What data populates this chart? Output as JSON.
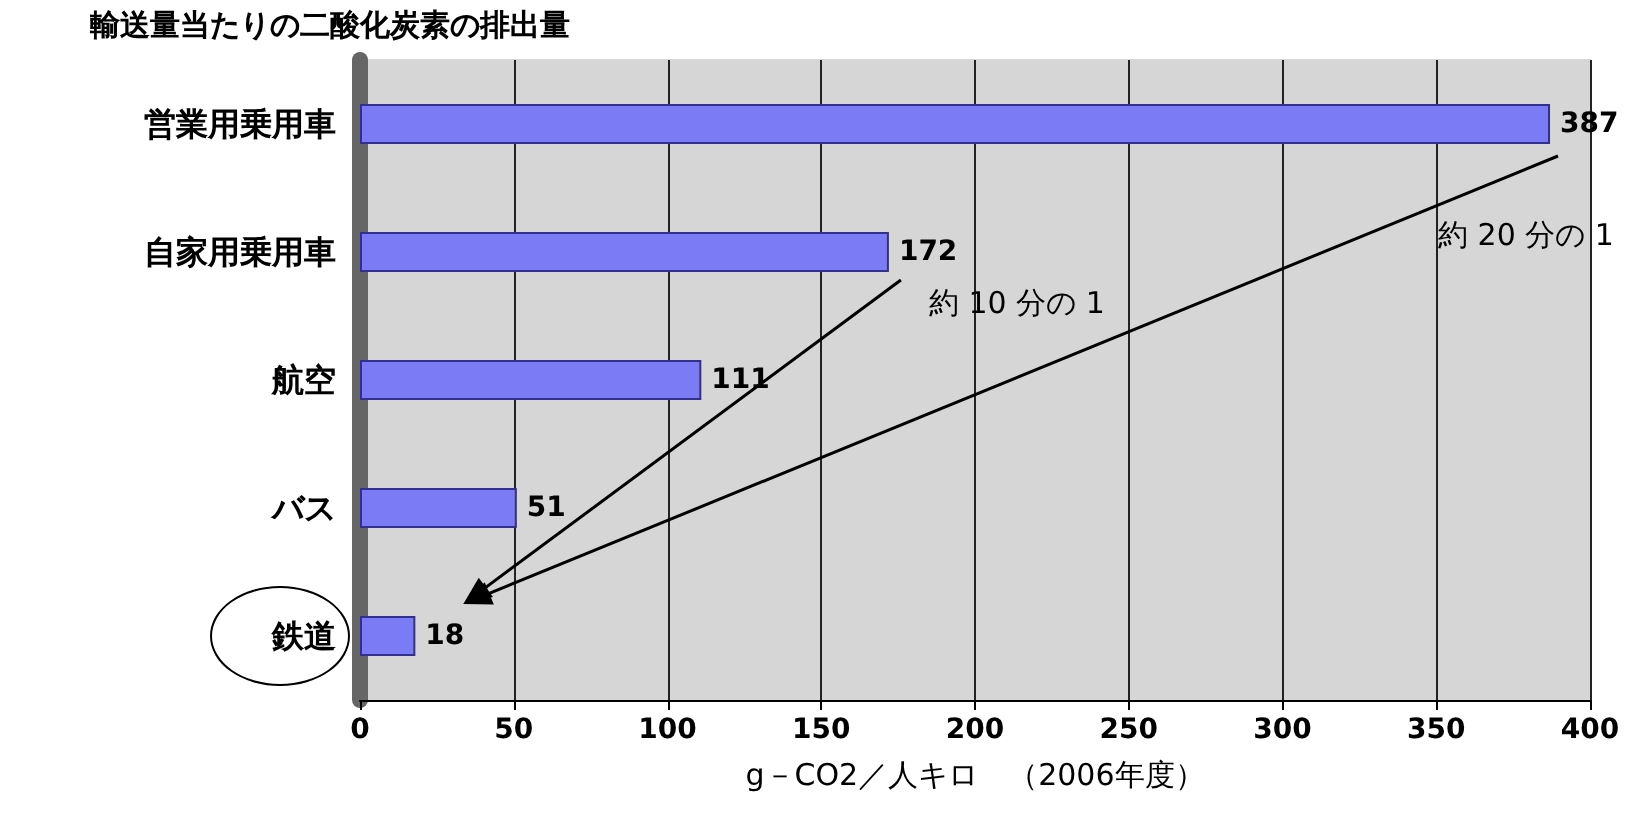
{
  "chart_data": {
    "type": "bar",
    "orientation": "horizontal",
    "title": "輸送量当たりの二酸化炭素の排出量",
    "categories": [
      "営業用乗用車",
      "自家用乗用車",
      "航空",
      "バス",
      "鉄道"
    ],
    "values": [
      387,
      172,
      111,
      51,
      18
    ],
    "color": "#7b7bf5",
    "xlim": [
      0,
      400
    ],
    "xticks": [
      0,
      50,
      100,
      150,
      200,
      250,
      300,
      350,
      400
    ],
    "xlabel": "g－CO2／人キロ　（2006年度）",
    "grid": "x",
    "data_labels": true,
    "annotations": [
      "約 10 分の 1",
      "約 20 分の 1"
    ]
  }
}
